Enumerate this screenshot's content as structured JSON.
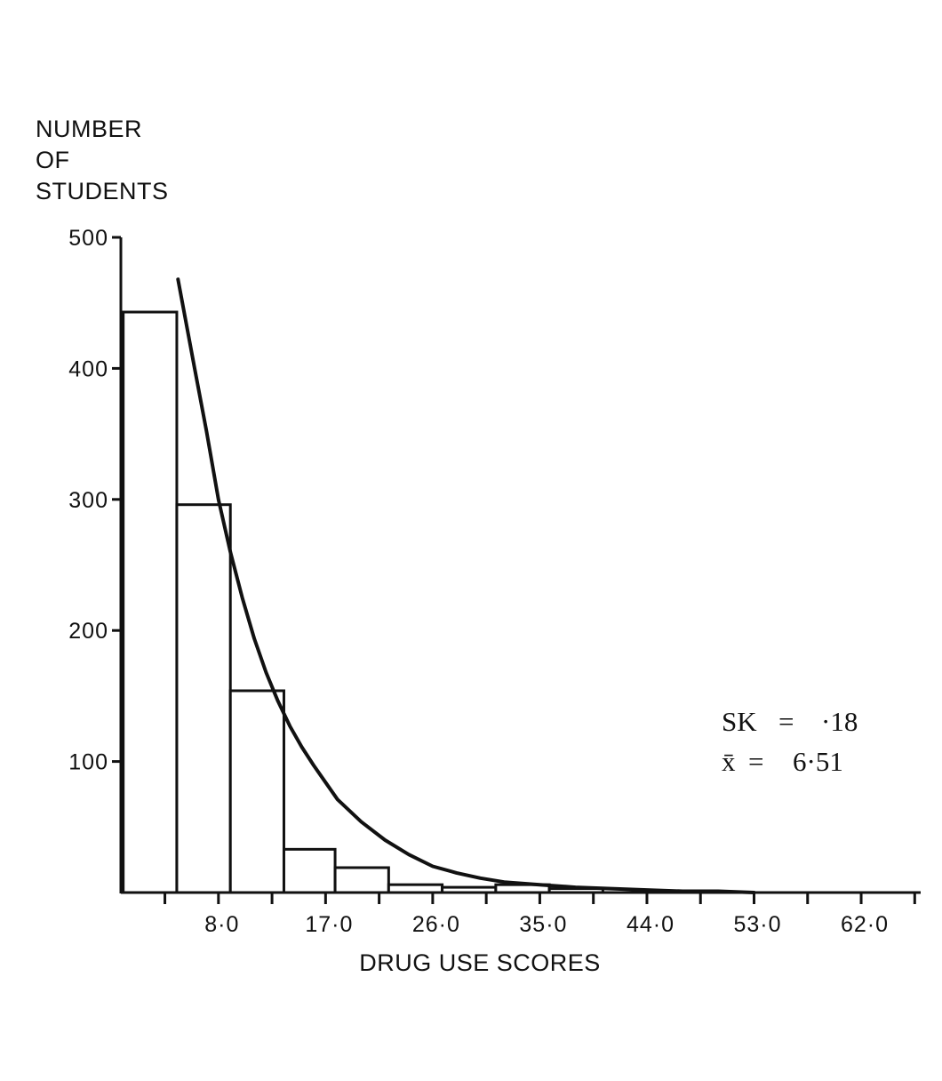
{
  "chart_data": {
    "type": "bar",
    "ylabel_lines": [
      "NUMBER",
      "OF",
      "STUDENTS"
    ],
    "xlabel": "DRUG USE SCORES",
    "y_ticks": [
      "500",
      "400",
      "300",
      "200",
      "100"
    ],
    "x_tick_labels": [
      "8·0",
      "17·0",
      "26·0",
      "35·0",
      "44·0",
      "53·0",
      "62·0"
    ],
    "bins": [
      {
        "start": 0.0,
        "end": 4.5,
        "value": 443
      },
      {
        "start": 4.5,
        "end": 9.0,
        "value": 296
      },
      {
        "start": 9.0,
        "end": 13.5,
        "value": 154
      },
      {
        "start": 13.5,
        "end": 17.8,
        "value": 33
      },
      {
        "start": 17.8,
        "end": 22.3,
        "value": 19
      },
      {
        "start": 22.3,
        "end": 26.8,
        "value": 6
      },
      {
        "start": 26.8,
        "end": 31.3,
        "value": 4
      },
      {
        "start": 31.3,
        "end": 35.8,
        "value": 6
      },
      {
        "start": 35.8,
        "end": 40.3,
        "value": 3
      }
    ],
    "fitted_curve": {
      "x": [
        4.6,
        6,
        7,
        8,
        9,
        10,
        11,
        12,
        13,
        14,
        15,
        16,
        17,
        18,
        20,
        22,
        24,
        26,
        28,
        30,
        32,
        35,
        38,
        41,
        44,
        47,
        50,
        53
      ],
      "y": [
        468,
        400,
        352,
        300,
        260,
        225,
        194,
        168,
        146,
        127,
        111,
        97,
        84,
        71,
        54,
        40,
        29,
        20,
        15,
        11,
        8,
        6,
        4,
        3,
        2,
        1,
        1,
        0
      ]
    },
    "xlim": [
      -0.2,
      67.0
    ],
    "ylim": [
      0,
      500
    ],
    "annotations": [
      {
        "label": "SK",
        "value": "·18"
      },
      {
        "label": "x̄",
        "value": "6·51"
      }
    ]
  }
}
